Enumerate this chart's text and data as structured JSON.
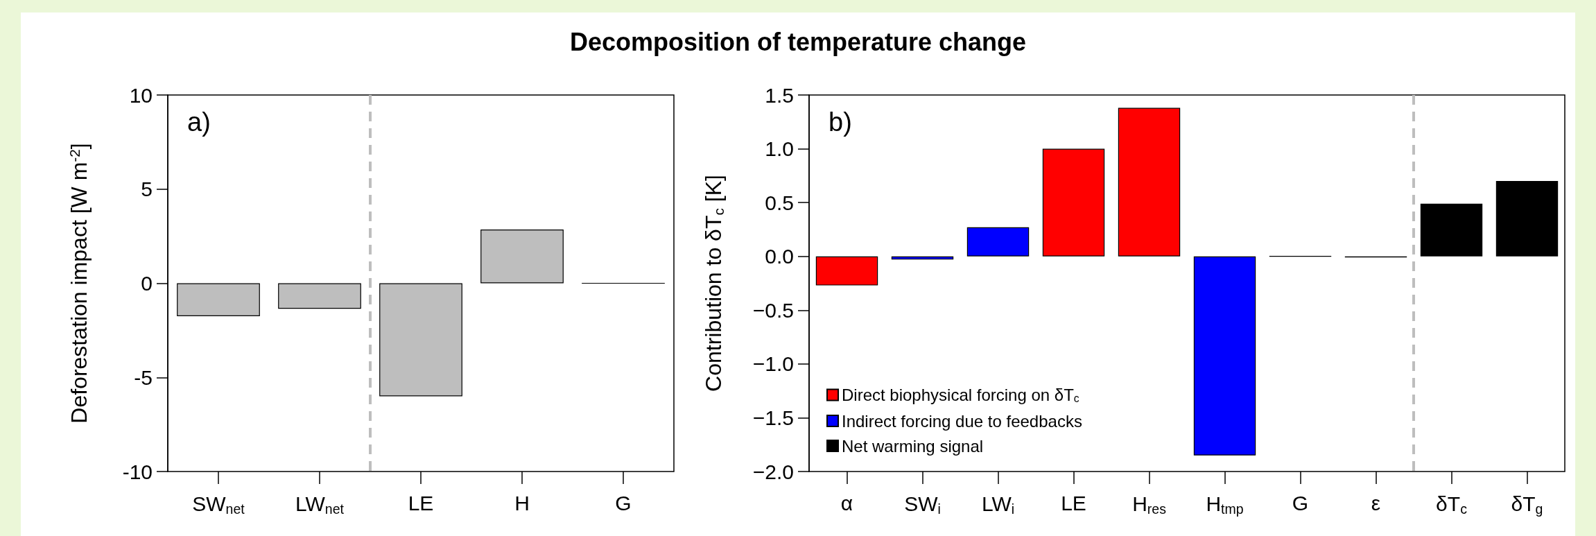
{
  "chart_data": [
    {
      "type": "bar",
      "title": "Decomposition of temperature change",
      "ylabel": "Deforestation impact [W m$^{-2}$]",
      "categories": [
        "SW$_{net}$",
        "LW$_{net}$",
        "LE",
        "H",
        "G"
      ],
      "series": [
        {
          "color": "#bebebe",
          "colors": [
            "#bebebe",
            "#bebebe",
            "#bebebe",
            "#bebebe",
            "#000000"
          ],
          "values": [
            -1.75,
            -1.35,
            -6.0,
            2.85,
            0
          ]
        }
      ],
      "ylim": [
        -10,
        10
      ],
      "yticks": [
        -10,
        -5,
        0,
        5,
        10
      ],
      "grid": false,
      "legend": false,
      "annotations": [
        "a)"
      ]
    },
    {
      "type": "bar",
      "ylabel": "Contribution to δT$_{c}$ [K]",
      "categories": [
        "α",
        "SW$_{i}$",
        "LW$_{i}$",
        "LE",
        "H$_{res}$",
        "H$_{tmp}$",
        "G",
        "ε",
        "δT$_{c}$",
        "δT$_{g}$"
      ],
      "series": [
        {
          "name": "Direct biophysical forcing on δT$_{c}$",
          "color": "#ff0000",
          "values": [
            -0.27,
            null,
            null,
            1.0,
            1.38,
            null,
            null,
            null,
            null,
            null
          ]
        },
        {
          "name": "Indirect forcing due to feedbacks",
          "color": "#0000ff",
          "colors": [
            null,
            "#0000ff",
            "#0000ff",
            null,
            null,
            "#0000ff",
            "#000000",
            "#000000",
            null,
            null
          ],
          "values": [
            null,
            -0.03,
            0.27,
            null,
            null,
            -1.85,
            0,
            -0.01,
            null,
            null
          ]
        },
        {
          "name": "Net warming signal",
          "color": "#000000",
          "values": [
            null,
            null,
            null,
            null,
            null,
            null,
            null,
            null,
            0.49,
            0.7
          ]
        }
      ],
      "ylim": [
        -2,
        1.5
      ],
      "yticks": [
        {
          "value": -2,
          "label": "−2.0"
        },
        {
          "value": -1.5,
          "label": "−1.5"
        },
        {
          "value": -1,
          "label": "−1.0"
        },
        {
          "value": -0.5,
          "label": "−0.5"
        },
        {
          "value": 0,
          "label": "0.0"
        },
        {
          "value": 0.5,
          "label": "0.5"
        },
        {
          "value": 1,
          "label": "1.0"
        },
        {
          "value": 1.5,
          "label": "1.5"
        }
      ],
      "grid": false,
      "legend": "bottom left",
      "annotations": [
        "b)"
      ]
    }
  ]
}
